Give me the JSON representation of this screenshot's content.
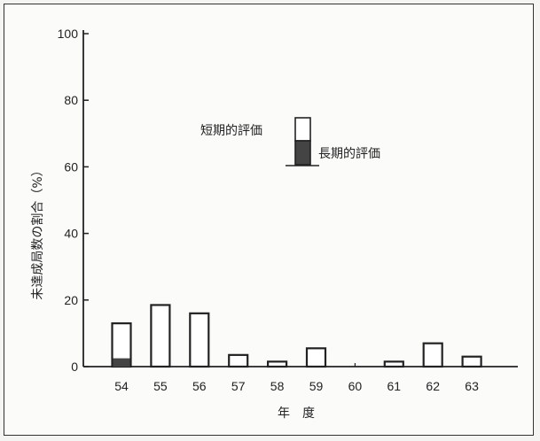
{
  "chart_data": {
    "type": "bar",
    "xlabel": "年　度",
    "ylabel": "未達成局数の割合（%）",
    "ylim": [
      0,
      100
    ],
    "yticks": [
      0,
      20,
      40,
      60,
      80,
      100
    ],
    "categories": [
      "54",
      "55",
      "56",
      "57",
      "58",
      "59",
      "60",
      "61",
      "62",
      "63"
    ],
    "series": [
      {
        "name": "短期的評価",
        "values": [
          13,
          18.5,
          16,
          3.5,
          1.5,
          5.5,
          0,
          1.5,
          7,
          3
        ]
      },
      {
        "name": "長期的評価",
        "values": [
          2.5,
          0,
          0,
          0,
          0,
          0,
          0,
          0,
          0,
          0
        ]
      }
    ],
    "legend": {
      "position": "top-center",
      "items": [
        "短期的評価",
        "長期的評価"
      ]
    },
    "grid": false,
    "colors": {
      "outline": "#222222",
      "long_term_fill": "#444444",
      "short_term_fill": "#ffffff"
    }
  }
}
